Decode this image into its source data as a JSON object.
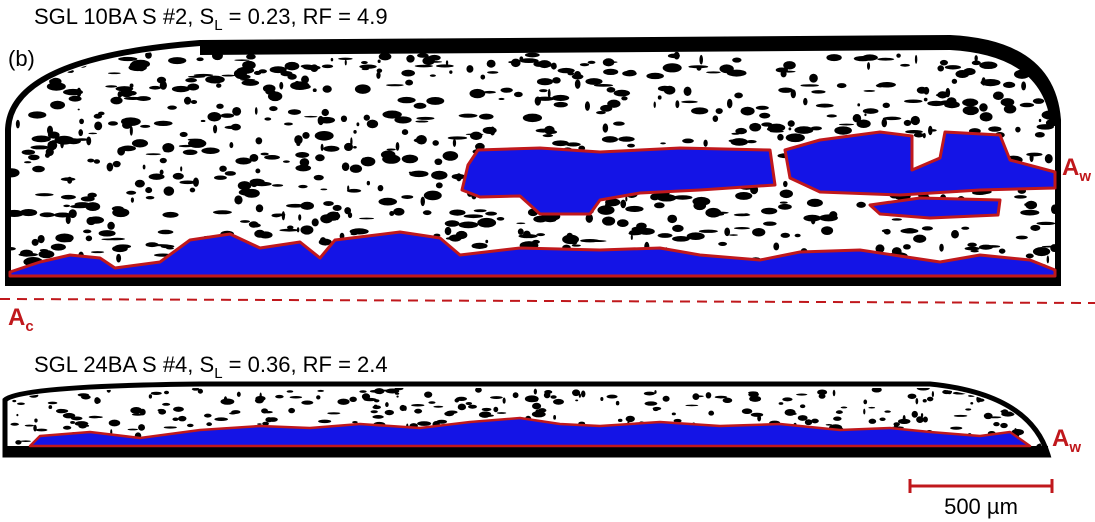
{
  "panel_label": "(b)",
  "top_sample": {
    "title_start": "SGL 10BA S #2, S",
    "title_subscript": "L",
    "title_end": " = 0.23, RF = 4.9"
  },
  "bottom_sample": {
    "title_start": "SGL 24BA S #4, S",
    "title_subscript": "L",
    "title_end": " = 0.36, RF = 2.4"
  },
  "annotations": {
    "top_wetted": {
      "main": "A",
      "subscript": "w"
    },
    "contact": {
      "main": "A",
      "subscript": "c"
    },
    "bottom_wetted": {
      "main": "A",
      "subscript": "w"
    }
  },
  "scale_bar": {
    "label": "500 µm"
  }
}
